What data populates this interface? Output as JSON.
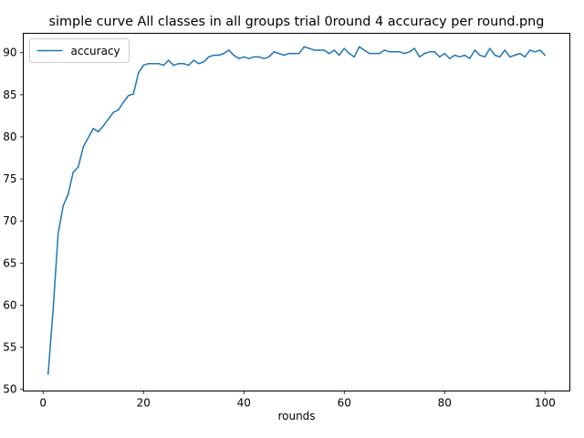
{
  "chart_data": {
    "type": "line",
    "title": "simple curve All classes in all groups trial 0round 4 accuracy per round.png",
    "xlabel": "rounds",
    "ylabel": "",
    "xlim": [
      -3.95,
      104.95
    ],
    "ylim": [
      49.8,
      92.3
    ],
    "xticks": [
      0,
      20,
      40,
      60,
      80,
      100
    ],
    "yticks": [
      50,
      55,
      60,
      65,
      70,
      75,
      80,
      85,
      90
    ],
    "legend_position": "upper-left",
    "grid": false,
    "series": [
      {
        "name": "accuracy",
        "color": "#1f77b4",
        "x": [
          1,
          2,
          3,
          4,
          5,
          6,
          7,
          8,
          9,
          10,
          11,
          12,
          13,
          14,
          15,
          16,
          17,
          18,
          19,
          20,
          21,
          22,
          23,
          24,
          25,
          26,
          27,
          28,
          29,
          30,
          31,
          32,
          33,
          34,
          35,
          36,
          37,
          38,
          39,
          40,
          41,
          42,
          43,
          44,
          45,
          46,
          47,
          48,
          49,
          50,
          51,
          52,
          53,
          54,
          55,
          56,
          57,
          58,
          59,
          60,
          61,
          62,
          63,
          64,
          65,
          66,
          67,
          68,
          69,
          70,
          71,
          72,
          73,
          74,
          75,
          76,
          77,
          78,
          79,
          80,
          81,
          82,
          83,
          84,
          85,
          86,
          87,
          88,
          89,
          90,
          91,
          92,
          93,
          94,
          95,
          96,
          97,
          98,
          99,
          100
        ],
        "y": [
          51.8,
          59.5,
          68.5,
          71.8,
          73.2,
          75.8,
          76.4,
          78.8,
          79.9,
          81.0,
          80.6,
          81.3,
          82.1,
          82.9,
          83.2,
          84.1,
          84.9,
          85.1,
          87.6,
          88.5,
          88.7,
          88.7,
          88.7,
          88.5,
          89.1,
          88.5,
          88.7,
          88.7,
          88.5,
          89.1,
          88.7,
          88.9,
          89.5,
          89.7,
          89.7,
          89.9,
          90.3,
          89.7,
          89.3,
          89.5,
          89.3,
          89.5,
          89.5,
          89.3,
          89.5,
          90.1,
          89.9,
          89.7,
          89.9,
          89.9,
          89.9,
          90.7,
          90.5,
          90.3,
          90.3,
          90.3,
          89.9,
          90.3,
          89.7,
          90.5,
          89.9,
          89.5,
          90.7,
          90.3,
          89.9,
          89.9,
          89.9,
          90.3,
          90.1,
          90.1,
          90.1,
          89.9,
          90.1,
          90.5,
          89.5,
          89.9,
          90.1,
          90.1,
          89.5,
          89.9,
          89.3,
          89.7,
          89.5,
          89.7,
          89.3,
          90.3,
          89.7,
          89.5,
          90.5,
          89.7,
          89.5,
          90.3,
          89.5,
          89.7,
          89.9,
          89.5,
          90.3,
          90.1,
          90.3,
          89.7
        ]
      }
    ]
  }
}
